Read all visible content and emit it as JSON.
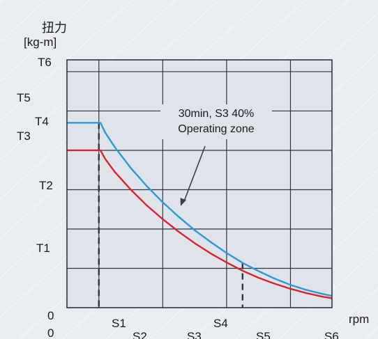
{
  "chart_data": {
    "type": "line",
    "ylabel_cn": "扭力",
    "ylabel_unit": "[kg-m]",
    "xlabel": "rpm",
    "y_ticks": [
      "0",
      "T1",
      "T2",
      "T3",
      "T4",
      "T5",
      "T6"
    ],
    "x_ticks": [
      "0",
      "S1",
      "S2",
      "S3",
      "S4",
      "S5",
      "S6"
    ],
    "annotation": [
      "30min, S3 40%",
      "Operating zone"
    ],
    "grid": true,
    "colors": {
      "blue_curve": "#2a9ad8",
      "red_curve": "#d8232a",
      "grid": "#2f3440",
      "plot_bg": "#dfe3ea"
    },
    "series": [
      {
        "color": "#2a9ad8",
        "points": [
          [
            0,
            4.7
          ],
          [
            1.05,
            4.7
          ],
          [
            1.2,
            4.45
          ],
          [
            1.5,
            4.08
          ],
          [
            2,
            3.55
          ],
          [
            2.5,
            3.09
          ],
          [
            3,
            2.68
          ],
          [
            3.5,
            2.31
          ],
          [
            4,
            1.97
          ],
          [
            4.5,
            1.67
          ],
          [
            5,
            1.39
          ],
          [
            5.5,
            1.14
          ],
          [
            6,
            0.93
          ],
          [
            6.5,
            0.74
          ],
          [
            7,
            0.58
          ],
          [
            7.5,
            0.45
          ],
          [
            8,
            0.35
          ],
          [
            8.3,
            0.3
          ]
        ]
      },
      {
        "color": "#d8232a",
        "points": [
          [
            0,
            4.0
          ],
          [
            1.05,
            4.0
          ],
          [
            1.2,
            3.78
          ],
          [
            1.5,
            3.45
          ],
          [
            2,
            3.0
          ],
          [
            2.5,
            2.6
          ],
          [
            3,
            2.25
          ],
          [
            3.5,
            1.93
          ],
          [
            4,
            1.64
          ],
          [
            4.5,
            1.38
          ],
          [
            5,
            1.15
          ],
          [
            5.5,
            0.94
          ],
          [
            6,
            0.76
          ],
          [
            6.5,
            0.61
          ],
          [
            7,
            0.48
          ],
          [
            7.5,
            0.37
          ],
          [
            8,
            0.28
          ],
          [
            8.3,
            0.24
          ]
        ]
      }
    ]
  }
}
